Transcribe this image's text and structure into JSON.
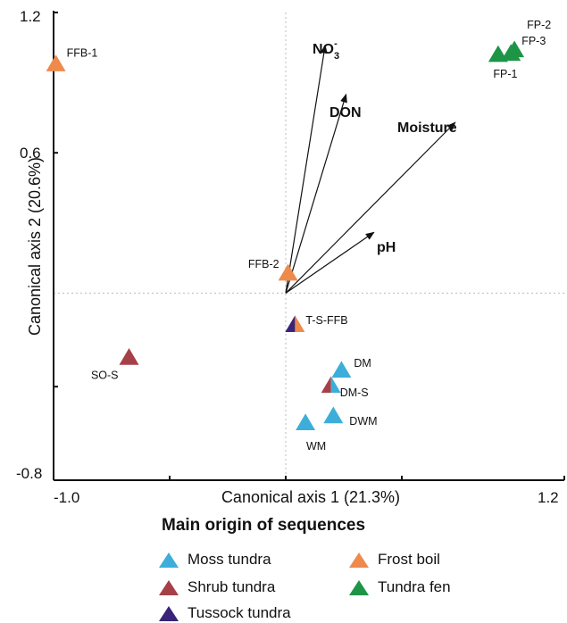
{
  "chart_data": {
    "type": "scatter",
    "xlabel": "Canonical axis 1 (21.3%)",
    "ylabel": "Canonical axis 2 (20.6%)",
    "xlim": [
      -1.0,
      1.2
    ],
    "ylim": [
      -0.8,
      1.2
    ],
    "x_tick_labels": [
      "-1.0",
      "1.2"
    ],
    "y_tick_labels": [
      "1.2",
      "0.6",
      "-0.8"
    ],
    "zero_lines": "dotted",
    "points": [
      {
        "label": "FFB-1",
        "x": -0.99,
        "y": 0.98,
        "group": "frost_boil"
      },
      {
        "label": "FP-1",
        "x": 0.915,
        "y": 1.02,
        "group": "tundra_fen"
      },
      {
        "label": "FP-2",
        "x": 0.985,
        "y": 1.04,
        "group": "tundra_fen"
      },
      {
        "label": "FP-3",
        "x": 0.97,
        "y": 1.025,
        "group": "tundra_fen"
      },
      {
        "label": "FFB-2",
        "x": 0.01,
        "y": 0.085,
        "group": "frost_boil"
      },
      {
        "label": "T-S-FFB",
        "x": 0.04,
        "y": -0.135,
        "group": "tussock_tundra",
        "group2": "frost_boil"
      },
      {
        "label": "SO-S",
        "x": -0.675,
        "y": -0.275,
        "group": "shrub_tundra"
      },
      {
        "label": "DM",
        "x": 0.24,
        "y": -0.33,
        "group": "moss_tundra"
      },
      {
        "label": "DM-S",
        "x": 0.195,
        "y": -0.395,
        "group": "shrub_tundra",
        "group2": "moss_tundra"
      },
      {
        "label": "DWM",
        "x": 0.205,
        "y": -0.525,
        "group": "moss_tundra"
      },
      {
        "label": "WM",
        "x": 0.085,
        "y": -0.555,
        "group": "moss_tundra"
      }
    ],
    "vectors": [
      {
        "label": "NO3-",
        "x": 0.17,
        "y": 1.06
      },
      {
        "label": "DON",
        "x": 0.26,
        "y": 0.85
      },
      {
        "label": "Moisture",
        "x": 0.73,
        "y": 0.73
      },
      {
        "label": "pH",
        "x": 0.38,
        "y": 0.26
      }
    ],
    "vector_display": {
      "NO3-": {
        "base": "NO",
        "sub": "3",
        "sup": "-"
      },
      "DON": {
        "base": "DON"
      },
      "Moisture": {
        "base": "Moisture"
      },
      "pH": {
        "base": "pH"
      }
    }
  },
  "legend": {
    "title": "Main origin of sequences",
    "items": [
      {
        "key": "moss_tundra",
        "label": "Moss tundra",
        "color": "#3DAED9"
      },
      {
        "key": "frost_boil",
        "label": "Frost boil",
        "color": "#EE8A4B"
      },
      {
        "key": "shrub_tundra",
        "label": "Shrub tundra",
        "color": "#A64048"
      },
      {
        "key": "tundra_fen",
        "label": "Tundra fen",
        "color": "#1E9446"
      },
      {
        "key": "tussock_tundra",
        "label": "Tussock tundra",
        "color": "#3A2378"
      }
    ]
  }
}
